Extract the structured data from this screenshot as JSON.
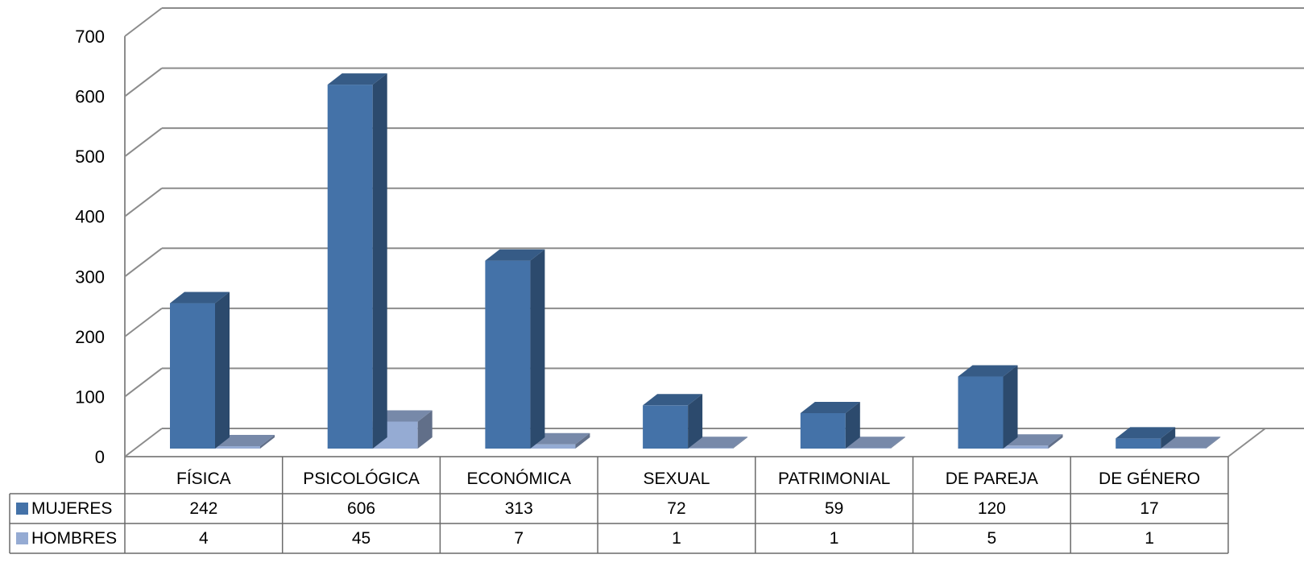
{
  "chart_data": {
    "type": "bar",
    "variant": "3d-clustered-column-with-data-table",
    "title": "",
    "xlabel": "",
    "ylabel": "",
    "ylim": [
      0,
      700
    ],
    "yticks": [
      "0",
      "100",
      "200",
      "300",
      "400",
      "500",
      "600",
      "700"
    ],
    "grid": true,
    "legend": "data-table",
    "categories": [
      "FÍSICA",
      "PSICOLÓGICA",
      "ECONÓMICA",
      "SEXUAL",
      "PATRIMONIAL",
      "DE PAREJA",
      "DE GÉNERO"
    ],
    "series": [
      {
        "name": "MUJERES",
        "color": "#4472A8",
        "values": [
          242,
          606,
          313,
          72,
          59,
          120,
          17
        ],
        "labels": [
          "242",
          "606",
          "313",
          "72",
          "59",
          "120",
          "17"
        ]
      },
      {
        "name": "HOMBRES",
        "color": "#95ABD3",
        "values": [
          4,
          45,
          7,
          1,
          1,
          5,
          1
        ],
        "labels": [
          "4",
          "45",
          "7",
          "1",
          "1",
          "5",
          "1"
        ]
      }
    ]
  }
}
